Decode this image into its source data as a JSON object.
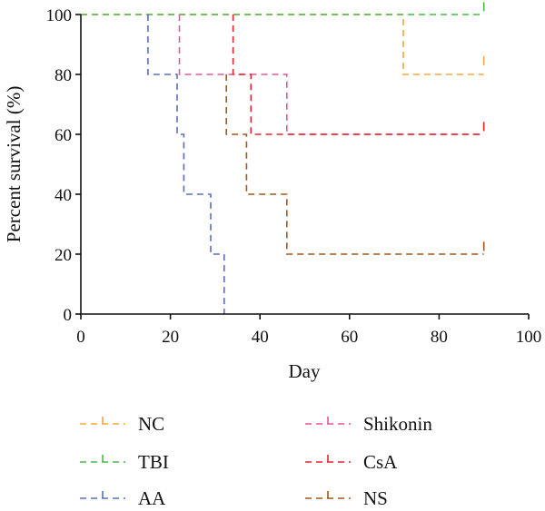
{
  "chart_data": {
    "type": "line",
    "step": true,
    "xlabel": "Day",
    "ylabel": "Percent survival (%)",
    "xlim": [
      0,
      100
    ],
    "ylim": [
      0,
      100
    ],
    "xticks": [
      0,
      20,
      40,
      60,
      80,
      100
    ],
    "yticks": [
      0,
      20,
      40,
      60,
      80,
      100
    ],
    "grid": false,
    "legend": {
      "position": "bottom",
      "columns": 2
    },
    "series": [
      {
        "name": "NC",
        "color": "#f5a53b",
        "dash": true,
        "points": [
          [
            0,
            100
          ],
          [
            72,
            100
          ],
          [
            72,
            80
          ],
          [
            90,
            80
          ]
        ],
        "censor": [
          90,
          84
        ]
      },
      {
        "name": "TBI",
        "color": "#4cb848",
        "dash": true,
        "points": [
          [
            0,
            100
          ],
          [
            90,
            100
          ]
        ],
        "censor": [
          90,
          102
        ]
      },
      {
        "name": "AA",
        "color": "#5b6fb5",
        "dash": true,
        "points": [
          [
            15,
            100
          ],
          [
            15,
            80
          ],
          [
            21.5,
            80
          ],
          [
            21.5,
            60
          ],
          [
            23,
            60
          ],
          [
            23,
            40
          ],
          [
            29,
            40
          ],
          [
            29,
            20
          ],
          [
            32,
            20
          ],
          [
            32,
            0
          ]
        ]
      },
      {
        "name": "Shikonin",
        "color": "#e2559c",
        "dash": true,
        "points": [
          [
            22,
            100
          ],
          [
            22,
            80
          ],
          [
            46,
            80
          ],
          [
            46,
            60
          ],
          [
            90,
            60
          ]
        ],
        "censor": [
          90,
          62
        ]
      },
      {
        "name": "CsA",
        "color": "#e0282c",
        "dash": true,
        "points": [
          [
            34,
            100
          ],
          [
            34,
            80
          ],
          [
            38,
            80
          ],
          [
            38,
            60
          ],
          [
            90,
            60
          ]
        ],
        "censor": [
          90,
          62
        ]
      },
      {
        "name": "NS",
        "color": "#a0561c",
        "dash": true,
        "points": [
          [
            32.5,
            80
          ],
          [
            32.5,
            60
          ],
          [
            37,
            60
          ],
          [
            37,
            40
          ],
          [
            46,
            40
          ],
          [
            46,
            20
          ],
          [
            90,
            20
          ]
        ],
        "censor": [
          90,
          22
        ]
      }
    ]
  }
}
